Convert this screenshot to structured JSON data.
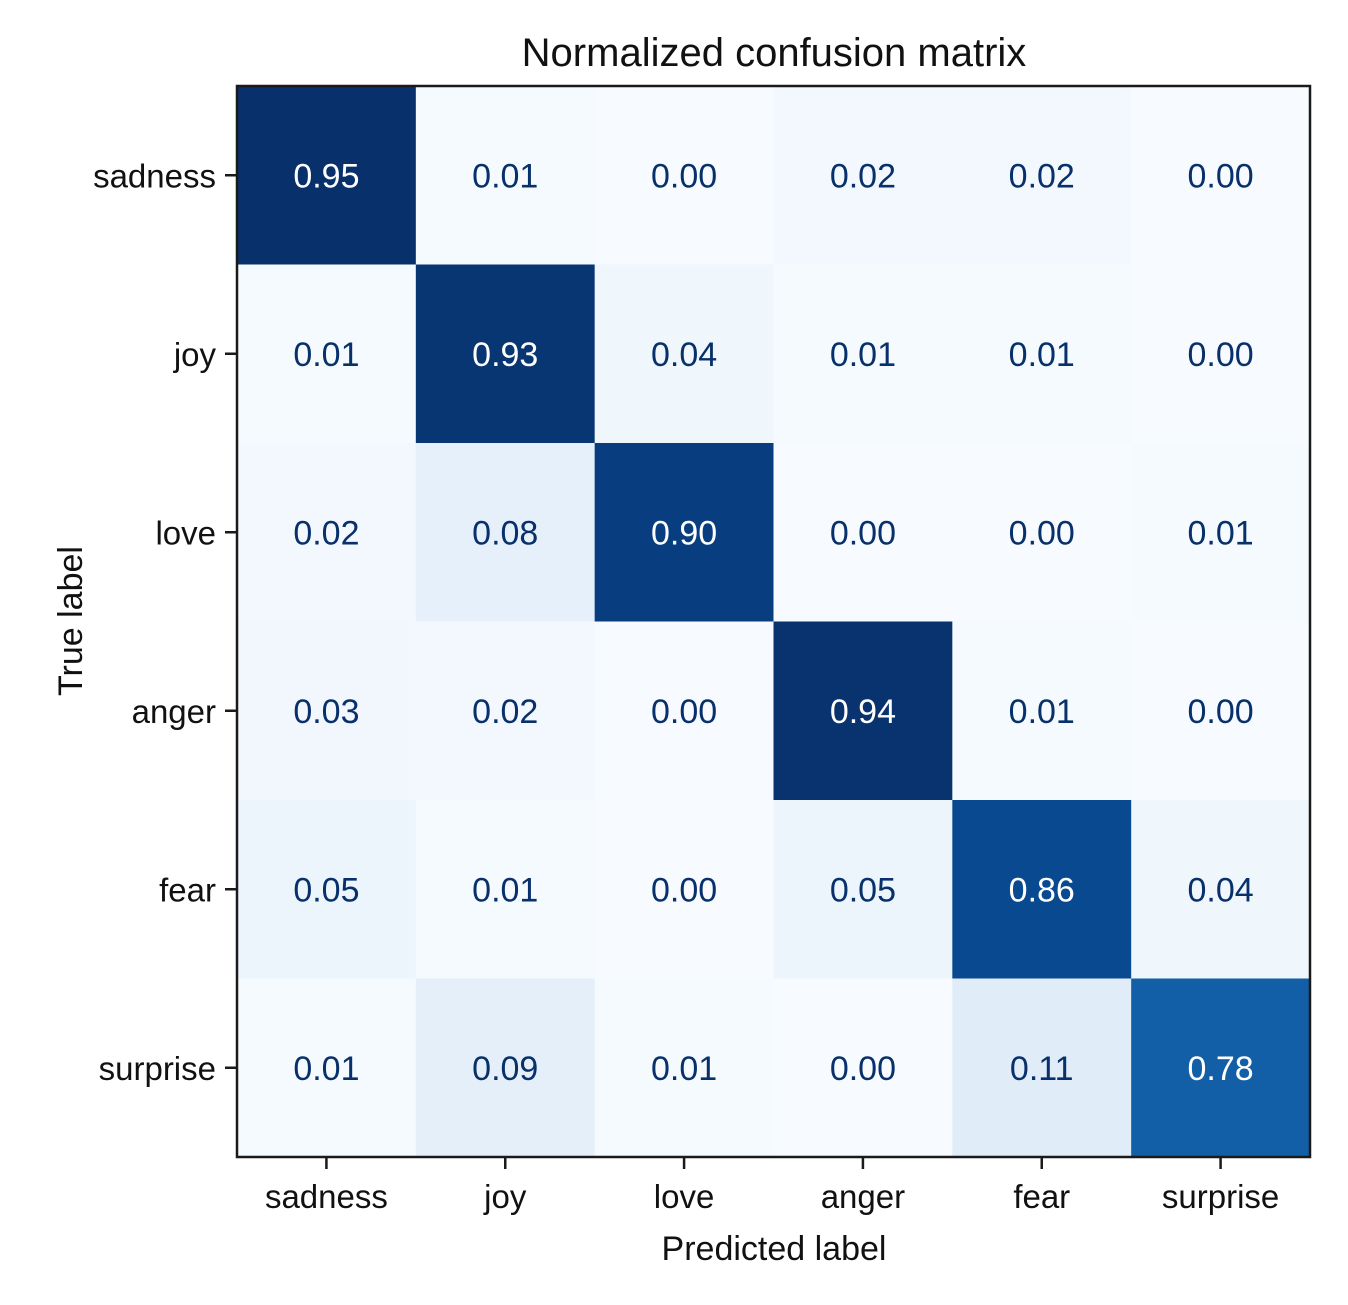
{
  "chart_data": {
    "type": "heatmap",
    "title": "Normalized confusion matrix",
    "xlabel": "Predicted label",
    "ylabel": "True label",
    "x_categories": [
      "sadness",
      "joy",
      "love",
      "anger",
      "fear",
      "surprise"
    ],
    "y_categories": [
      "sadness",
      "joy",
      "love",
      "anger",
      "fear",
      "surprise"
    ],
    "values": [
      [
        0.95,
        0.01,
        0.0,
        0.02,
        0.02,
        0.0
      ],
      [
        0.01,
        0.93,
        0.04,
        0.01,
        0.01,
        0.0
      ],
      [
        0.02,
        0.08,
        0.9,
        0.0,
        0.0,
        0.01
      ],
      [
        0.03,
        0.02,
        0.0,
        0.94,
        0.01,
        0.0
      ],
      [
        0.05,
        0.01,
        0.0,
        0.05,
        0.86,
        0.04
      ],
      [
        0.01,
        0.09,
        0.01,
        0.0,
        0.11,
        0.78
      ]
    ],
    "value_labels": [
      [
        "0.95",
        "0.01",
        "0.00",
        "0.02",
        "0.02",
        "0.00"
      ],
      [
        "0.01",
        "0.93",
        "0.04",
        "0.01",
        "0.01",
        "0.00"
      ],
      [
        "0.02",
        "0.08",
        "0.90",
        "0.00",
        "0.00",
        "0.01"
      ],
      [
        "0.03",
        "0.02",
        "0.00",
        "0.94",
        "0.01",
        "0.00"
      ],
      [
        "0.05",
        "0.01",
        "0.00",
        "0.05",
        "0.86",
        "0.04"
      ],
      [
        "0.01",
        "0.09",
        "0.01",
        "0.00",
        "0.11",
        "0.78"
      ]
    ],
    "colormap": "Blues",
    "color_range": [
      0,
      0.95
    ],
    "colors": {
      "low": "#f7fbff",
      "high": "#08306b",
      "text_dark": "#08306b",
      "text_light": "#ffffff"
    },
    "legend": "none",
    "grid": false
  }
}
